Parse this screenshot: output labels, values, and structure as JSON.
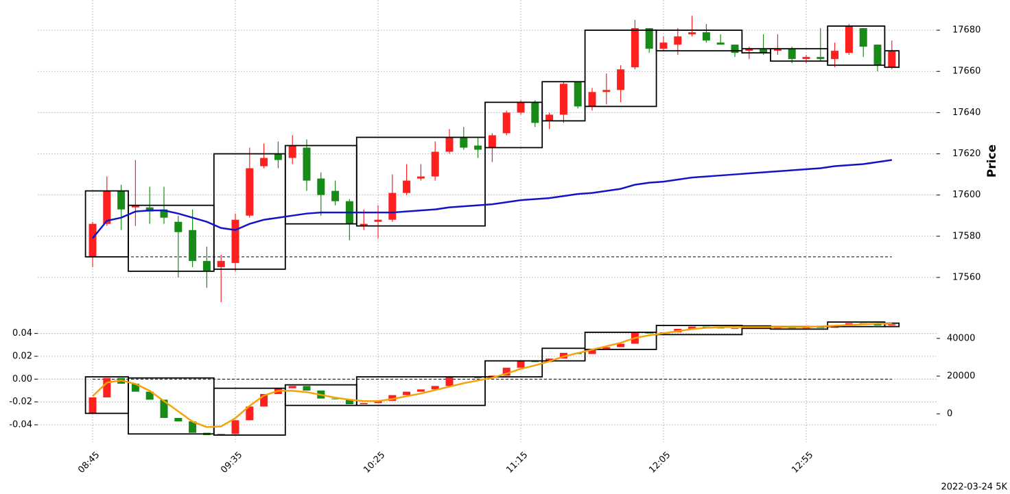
{
  "chart_data": {
    "type": "candlestick",
    "ylabel": "Price",
    "annotation": "2022-03-24 5K",
    "grid": true,
    "up_color": "#fe1f1f",
    "down_color": "#178a17",
    "x": [
      "08:45",
      "08:50",
      "08:55",
      "09:00",
      "09:05",
      "09:10",
      "09:15",
      "09:20",
      "09:25",
      "09:30",
      "09:35",
      "09:40",
      "09:45",
      "09:50",
      "09:55",
      "10:00",
      "10:05",
      "10:10",
      "10:15",
      "10:20",
      "10:25",
      "10:30",
      "10:35",
      "10:40",
      "10:45",
      "10:50",
      "10:55",
      "11:00",
      "11:05",
      "11:10",
      "11:15",
      "11:20",
      "11:25",
      "11:30",
      "11:35",
      "11:40",
      "11:45",
      "11:50",
      "11:55",
      "12:00",
      "12:05",
      "12:10",
      "12:15",
      "12:20",
      "12:25",
      "12:30",
      "12:35",
      "12:40",
      "12:45",
      "12:50",
      "12:55",
      "13:00",
      "13:05",
      "13:10",
      "13:15",
      "13:20",
      "13:25"
    ],
    "xticks": [
      "08:45",
      "09:35",
      "10:25",
      "11:15",
      "12:05",
      "12:55"
    ],
    "ylim": [
      17545,
      17693
    ],
    "yticks": [
      17560,
      17580,
      17600,
      17620,
      17640,
      17660,
      17680
    ],
    "open": [
      17570,
      17586,
      17602,
      17594,
      17594,
      17593,
      17587,
      17583,
      17568,
      17565,
      17567,
      17590,
      17614,
      17620,
      17618,
      17623,
      17608,
      17602,
      17597,
      17585,
      17587,
      17588,
      17601,
      17608,
      17609,
      17621,
      17628,
      17624,
      17623,
      17630,
      17640,
      17645,
      17636,
      17639,
      17655,
      17643,
      17650,
      17651,
      17662,
      17681,
      17671,
      17673,
      17678,
      17679,
      17674,
      17673,
      17670,
      17671,
      17670,
      17671,
      17666,
      17667,
      17666,
      17669,
      17681,
      17673,
      17662
    ],
    "high": [
      17587,
      17609,
      17605,
      17617,
      17604,
      17604,
      17590,
      17593,
      17575,
      17571,
      17591,
      17623,
      17625,
      17626,
      17629,
      17627,
      17611,
      17607,
      17598,
      17593,
      17595,
      17610,
      17615,
      17615,
      17626,
      17632,
      17633,
      17628,
      17630,
      17641,
      17646,
      17646,
      17640,
      17655,
      17655,
      17652,
      17659,
      17663,
      17685,
      17681,
      17677,
      17681,
      17687,
      17683,
      17678,
      17673,
      17672,
      17678,
      17678,
      17672,
      17668,
      17681,
      17674,
      17683,
      17681,
      17673,
      17675
    ],
    "low": [
      17565,
      17585,
      17583,
      17585,
      17586,
      17586,
      17560,
      17565,
      17555,
      17548,
      17563,
      17589,
      17613,
      17613,
      17615,
      17602,
      17590,
      17595,
      17578,
      17583,
      17579,
      17587,
      17600,
      17607,
      17607,
      17620,
      17622,
      17618,
      17616,
      17629,
      17639,
      17633,
      17632,
      17635,
      17642,
      17641,
      17644,
      17645,
      17661,
      17669,
      17670,
      17668,
      17677,
      17674,
      17673,
      17667,
      17666,
      17668,
      17668,
      17664,
      17664,
      17665,
      17662,
      17668,
      17667,
      17660,
      17661
    ],
    "close": [
      17586,
      17602,
      17593,
      17595,
      17592,
      17589,
      17582,
      17568,
      17563,
      17568,
      17588,
      17613,
      17618,
      17617,
      17624,
      17607,
      17600,
      17597,
      17586,
      17586,
      17588,
      17601,
      17607,
      17609,
      17621,
      17628,
      17623,
      17622,
      17629,
      17640,
      17645,
      17635,
      17639,
      17654,
      17643,
      17650,
      17651,
      17661,
      17681,
      17671,
      17674,
      17677,
      17679,
      17675,
      17673,
      17669,
      17671,
      17669,
      17671,
      17666,
      17667,
      17666,
      17670,
      17682,
      17672,
      17663,
      17670
    ],
    "line": {
      "color": "#1212c8",
      "values": [
        17579,
        17587.5,
        17589,
        17592,
        17592.5,
        17592.5,
        17591,
        17589,
        17587,
        17584,
        17583,
        17586,
        17588,
        17589,
        17590,
        17591,
        17591.5,
        17591.5,
        17591.5,
        17591.5,
        17591.5,
        17591.5,
        17592,
        17592.5,
        17593,
        17594,
        17594.5,
        17595,
        17595.5,
        17596.5,
        17597.5,
        17598,
        17598.5,
        17599.5,
        17600.5,
        17601,
        17602,
        17603,
        17605,
        17606,
        17606.5,
        17607.5,
        17608.5,
        17609,
        17609.5,
        17610,
        17610.5,
        17611,
        17611.5,
        17612,
        17612.5,
        17613,
        17614,
        17614.5,
        17615,
        17616,
        17617
      ]
    },
    "hline": 17570,
    "boxes": [
      {
        "x0": "08:45",
        "x1": "08:55",
        "low": 17570,
        "high": 17602
      },
      {
        "x0": "09:00",
        "x1": "09:25",
        "low": 17563,
        "high": 17595
      },
      {
        "x0": "09:30",
        "x1": "09:50",
        "low": 17564,
        "high": 17620
      },
      {
        "x0": "09:55",
        "x1": "10:15",
        "low": 17586,
        "high": 17624
      },
      {
        "x0": "10:20",
        "x1": "11:00",
        "low": 17585,
        "high": 17628
      },
      {
        "x0": "11:05",
        "x1": "11:20",
        "low": 17623,
        "high": 17645
      },
      {
        "x0": "11:25",
        "x1": "11:35",
        "low": 17636,
        "high": 17655
      },
      {
        "x0": "11:40",
        "x1": "12:00",
        "low": 17643,
        "high": 17680
      },
      {
        "x0": "12:05",
        "x1": "12:30",
        "low": 17670,
        "high": 17680
      },
      {
        "x0": "12:35",
        "x1": "12:40",
        "low": 17669,
        "high": 17671
      },
      {
        "x0": "12:45",
        "x1": "13:00",
        "low": 17665,
        "high": 17671
      },
      {
        "x0": "13:05",
        "x1": "13:20",
        "low": 17663,
        "high": 17682
      },
      {
        "x0": "13:25",
        "x1": "13:25",
        "low": 17662,
        "high": 17670
      }
    ],
    "lower": {
      "type": "candlestick",
      "ylim": [
        -0.055,
        0.053
      ],
      "yticks": [
        -0.04,
        -0.02,
        {
          "value": 0,
          "label": "0.00"
        },
        0.02,
        0.04
      ],
      "y2lim": [
        -14900,
        50500
      ],
      "y2ticks": [
        0,
        20000,
        40000
      ],
      "open": [
        -0.03,
        -0.016,
        0.001,
        -0.004,
        -0.011,
        -0.018,
        -0.034,
        -0.037,
        -0.047,
        -0.049,
        -0.048,
        -0.036,
        -0.024,
        -0.013,
        -0.008,
        -0.006,
        -0.01,
        -0.017,
        -0.0175,
        -0.022,
        -0.021,
        -0.019,
        -0.014,
        -0.011,
        -0.009,
        -0.006,
        0.002,
        0.0015,
        0.001,
        0.003,
        0.01,
        0.016,
        0.015,
        0.018,
        0.023,
        0.022,
        0.026,
        0.028,
        0.031,
        0.041,
        0.04,
        0.041,
        0.044,
        0.046,
        0.045,
        0.0445,
        0.044,
        0.045,
        0.0445,
        0.0455,
        0.0445,
        0.0455,
        0.045,
        0.047,
        0.049,
        0.048,
        0.047
      ],
      "close": [
        -0.016,
        0.001,
        -0.004,
        -0.011,
        -0.018,
        -0.034,
        -0.037,
        -0.047,
        -0.049,
        -0.048,
        -0.036,
        -0.024,
        -0.013,
        -0.008,
        -0.006,
        -0.01,
        -0.017,
        -0.0175,
        -0.022,
        -0.021,
        -0.019,
        -0.014,
        -0.011,
        -0.009,
        -0.006,
        0.002,
        0.0015,
        0.001,
        0.003,
        0.01,
        0.016,
        0.015,
        0.018,
        0.023,
        0.022,
        0.026,
        0.028,
        0.031,
        0.041,
        0.04,
        0.041,
        0.044,
        0.046,
        0.045,
        0.0445,
        0.044,
        0.045,
        0.0445,
        0.0455,
        0.0445,
        0.0455,
        0.045,
        0.047,
        0.049,
        0.048,
        0.047,
        0.048
      ],
      "line": {
        "color": "#f5a20a",
        "values": [
          -0.015,
          -0.003,
          -0.0012,
          -0.0042,
          -0.0102,
          -0.0192,
          -0.0282,
          -0.0372,
          -0.042,
          -0.0414,
          -0.0342,
          -0.0234,
          -0.0144,
          -0.0102,
          -0.0102,
          -0.0114,
          -0.0138,
          -0.0162,
          -0.018,
          -0.0192,
          -0.0192,
          -0.0174,
          -0.015,
          -0.0126,
          -0.0096,
          -0.0066,
          -0.0036,
          -0.0012,
          0.0012,
          0.0048,
          0.009,
          0.012,
          0.0156,
          0.0198,
          0.0228,
          0.0258,
          0.0288,
          0.0318,
          0.036,
          0.0384,
          0.0402,
          0.042,
          0.0438,
          0.045,
          0.0456,
          0.0456,
          0.0456,
          0.0456,
          0.0456,
          0.0456,
          0.0456,
          0.0462,
          0.0468,
          0.0474,
          0.048,
          0.0486,
          0.0486
        ]
      },
      "hline": 0,
      "boxes": [
        {
          "x0": "08:45",
          "x1": "08:55",
          "low": -0.03,
          "high": 0.002
        },
        {
          "x0": "09:00",
          "x1": "09:25",
          "low": -0.048,
          "high": 0.001
        },
        {
          "x0": "09:30",
          "x1": "09:50",
          "low": -0.049,
          "high": -0.008
        },
        {
          "x0": "09:55",
          "x1": "10:15",
          "low": -0.023,
          "high": -0.005
        },
        {
          "x0": "10:20",
          "x1": "11:00",
          "low": -0.023,
          "high": 0.002
        },
        {
          "x0": "11:05",
          "x1": "11:20",
          "low": 0.002,
          "high": 0.016
        },
        {
          "x0": "11:25",
          "x1": "11:35",
          "low": 0.016,
          "high": 0.027
        },
        {
          "x0": "11:40",
          "x1": "12:00",
          "low": 0.026,
          "high": 0.041
        },
        {
          "x0": "12:05",
          "x1": "12:30",
          "low": 0.039,
          "high": 0.047
        },
        {
          "x0": "12:35",
          "x1": "12:40",
          "low": 0.0444,
          "high": 0.0466
        },
        {
          "x0": "12:45",
          "x1": "13:00",
          "low": 0.0438,
          "high": 0.046
        },
        {
          "x0": "13:05",
          "x1": "13:20",
          "low": 0.046,
          "high": 0.05
        },
        {
          "x0": "13:25",
          "x1": "13:25",
          "low": 0.046,
          "high": 0.049
        }
      ]
    }
  }
}
